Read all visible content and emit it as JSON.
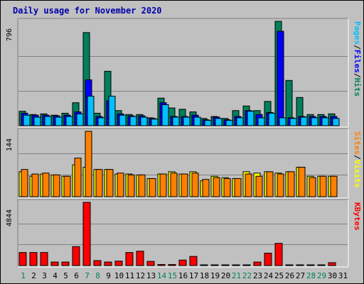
{
  "title": "Daily usage for November 2020",
  "colors": {
    "hits": "#00805c",
    "files": "#0000ff",
    "pages": "#00c0ff",
    "visits": "#ffff00",
    "sites": "#ff8000",
    "kbytes": "#ff0000",
    "weekend": "#00805c",
    "weekday": "#000000",
    "panel_bg": "#c0c0c0",
    "grid": "#808080"
  },
  "chart_data": [
    {
      "type": "bar",
      "panel": "top",
      "max_label": "796",
      "ylim": [
        0,
        796
      ],
      "legend": [
        "Pages",
        "Files",
        "Hits"
      ],
      "x": [
        1,
        2,
        3,
        4,
        5,
        6,
        7,
        8,
        9,
        10,
        11,
        12,
        13,
        14,
        15,
        16,
        17,
        18,
        19,
        20,
        21,
        22,
        23,
        24,
        25,
        26,
        27,
        28,
        29,
        30
      ],
      "series": [
        {
          "name": "Hits",
          "values": [
            110,
            85,
            90,
            80,
            95,
            175,
            710,
            95,
            415,
            115,
            85,
            85,
            60,
            210,
            135,
            125,
            105,
            55,
            70,
            55,
            115,
            150,
            115,
            185,
            796,
            345,
            215,
            85,
            85,
            90
          ]
        },
        {
          "name": "Files",
          "values": [
            95,
            80,
            80,
            75,
            80,
            105,
            350,
            70,
            190,
            90,
            75,
            75,
            55,
            175,
            70,
            70,
            80,
            45,
            65,
            45,
            70,
            115,
            85,
            100,
            720,
            60,
            70,
            70,
            70,
            70
          ]
        },
        {
          "name": "Pages",
          "values": [
            80,
            65,
            70,
            65,
            70,
            90,
            225,
            60,
            225,
            80,
            70,
            65,
            50,
            160,
            65,
            65,
            65,
            40,
            55,
            40,
            60,
            110,
            60,
            95,
            60,
            55,
            65,
            60,
            60,
            55
          ]
        }
      ],
      "day_of_month": [
        1,
        2,
        3,
        4,
        5,
        6,
        7,
        8,
        9,
        10,
        11,
        12,
        13,
        14,
        15,
        16,
        17,
        18,
        19,
        20,
        21,
        22,
        23,
        24,
        25,
        26,
        27,
        28,
        29,
        30,
        31
      ]
    },
    {
      "type": "bar",
      "panel": "middle",
      "max_label": "144",
      "ylim": [
        0,
        144
      ],
      "legend": [
        "Sites",
        "Visits"
      ],
      "x": [
        1,
        2,
        3,
        4,
        5,
        6,
        7,
        8,
        9,
        10,
        11,
        12,
        13,
        14,
        15,
        16,
        17,
        18,
        19,
        20,
        21,
        22,
        23,
        24,
        25,
        26,
        27,
        28,
        29,
        30
      ],
      "series": [
        {
          "name": "Visits",
          "values": [
            55,
            45,
            50,
            48,
            45,
            70,
            65,
            60,
            60,
            50,
            50,
            48,
            40,
            50,
            55,
            50,
            55,
            35,
            45,
            42,
            40,
            55,
            52,
            55,
            52,
            55,
            65,
            45,
            45,
            45
          ]
        },
        {
          "name": "Sites",
          "values": [
            60,
            50,
            52,
            48,
            45,
            85,
            144,
            60,
            60,
            52,
            48,
            48,
            40,
            50,
            52,
            50,
            52,
            38,
            42,
            40,
            40,
            50,
            45,
            55,
            50,
            55,
            65,
            42,
            45,
            45
          ]
        }
      ]
    },
    {
      "type": "bar",
      "panel": "bottom",
      "max_label": "4844",
      "ylim": [
        0,
        4844
      ],
      "legend": [
        "KBytes"
      ],
      "x": [
        1,
        2,
        3,
        4,
        5,
        6,
        7,
        8,
        9,
        10,
        11,
        12,
        13,
        14,
        15,
        16,
        17,
        18,
        19,
        20,
        21,
        22,
        23,
        24,
        25,
        26,
        27,
        28,
        29,
        30
      ],
      "series": [
        {
          "name": "KBytes",
          "values": [
            1000,
            1000,
            1000,
            270,
            270,
            1450,
            4844,
            380,
            270,
            340,
            1000,
            1100,
            320,
            80,
            80,
            420,
            700,
            40,
            40,
            40,
            40,
            40,
            270,
            950,
            1700,
            40,
            40,
            40,
            40,
            220
          ]
        }
      ]
    }
  ]
}
